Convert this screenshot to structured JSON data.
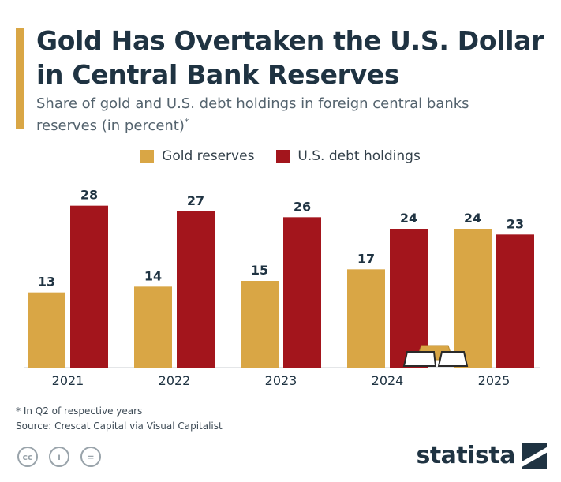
{
  "header": {
    "title": "Gold Has Overtaken the U.S. Dollar in Central Bank Reserves",
    "subtitle": "Share of gold and U.S. debt holdings in foreign central banks reserves (in percent)",
    "subtitle_mark": "*"
  },
  "legend": {
    "gold_label": "Gold reserves",
    "debt_label": "U.S. debt holdings"
  },
  "colors": {
    "gold": "#d9a645",
    "debt": "#a3151c",
    "accent": "#d9a645"
  },
  "chart_data": {
    "type": "bar",
    "categories": [
      "2021",
      "2022",
      "2023",
      "2024",
      "2025"
    ],
    "series": [
      {
        "name": "Gold reserves",
        "values": [
          13,
          14,
          15,
          17,
          24
        ]
      },
      {
        "name": "U.S. debt holdings",
        "values": [
          28,
          27,
          26,
          24,
          23
        ]
      }
    ],
    "title": "Gold Has Overtaken the U.S. Dollar in Central Bank Reserves",
    "xlabel": "",
    "ylabel": "",
    "ylim": [
      0,
      30
    ],
    "grid": false,
    "legend_position": "top-center",
    "data_labels": true
  },
  "footer": {
    "note": "* In Q2 of respective years",
    "source": "Source: Crescat Capital via Visual Capitalist",
    "icons": [
      "cc-icon",
      "attribution-icon",
      "no-derivatives-icon"
    ],
    "brand": "statista"
  }
}
